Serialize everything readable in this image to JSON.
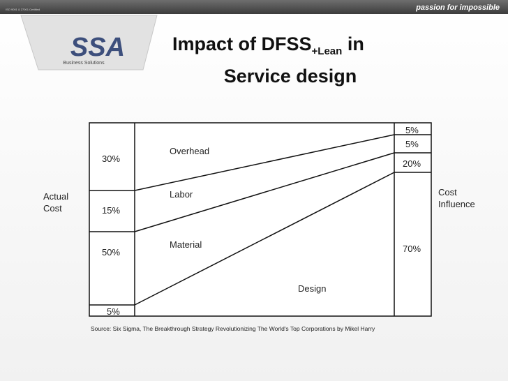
{
  "header": {
    "tagline": "passion for impossible",
    "certification": "ISO 9001 & 27001 Certified"
  },
  "logo": {
    "mark": "SSA",
    "caption": "Business Solutions"
  },
  "title": {
    "main": "Impact of DFSS",
    "subscript": "+Lean",
    "tail": " in",
    "line2": "Service design"
  },
  "diagram": {
    "left_label": [
      "Actual",
      "Cost"
    ],
    "right_label": [
      "Cost",
      "Influence"
    ],
    "actual_cost": [
      "30%",
      "15%",
      "50%",
      "5%"
    ],
    "cost_influence": [
      "5%",
      "5%",
      "20%",
      "70%"
    ],
    "categories": [
      "Overhead",
      "Labor",
      "Material",
      "Design"
    ],
    "source": "Source: Six Sigma, The Breakthrough Strategy Revolutionizing The World's Top Corporations by Mikel Harry"
  }
}
